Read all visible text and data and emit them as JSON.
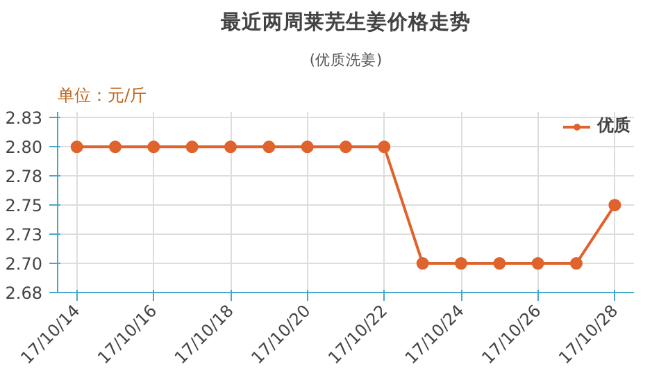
{
  "chart_data": {
    "type": "line",
    "title": "最近两周莱芜生姜价格走势",
    "subtitle": "(优质洗姜)",
    "annotations": [
      "单位：元/斤"
    ],
    "categories": [
      "17/10/14",
      null,
      "17/10/16",
      null,
      "17/10/18",
      null,
      "17/10/20",
      null,
      "17/10/22",
      null,
      "17/10/24",
      null,
      "17/10/26",
      null,
      "17/10/28"
    ],
    "series": [
      {
        "name": "优质",
        "color": "#e0622c",
        "values": [
          2.8,
          2.8,
          2.8,
          2.8,
          2.8,
          2.8,
          2.8,
          2.8,
          2.8,
          2.7,
          2.7,
          2.7,
          2.7,
          2.7,
          2.75
        ]
      }
    ],
    "ylim": [
      2.675,
      2.83
    ],
    "yticks": [
      {
        "value": 2.675,
        "label": "2.68"
      },
      {
        "value": 2.7,
        "label": "2.70"
      },
      {
        "value": 2.725,
        "label": "2.73"
      },
      {
        "value": 2.75,
        "label": "2.75"
      },
      {
        "value": 2.775,
        "label": "2.78"
      },
      {
        "value": 2.8,
        "label": "2.80"
      },
      {
        "value": 2.825,
        "label": "2.83"
      }
    ],
    "grid": true,
    "legend": "top right",
    "marker": "circle",
    "line_style": "solid"
  }
}
